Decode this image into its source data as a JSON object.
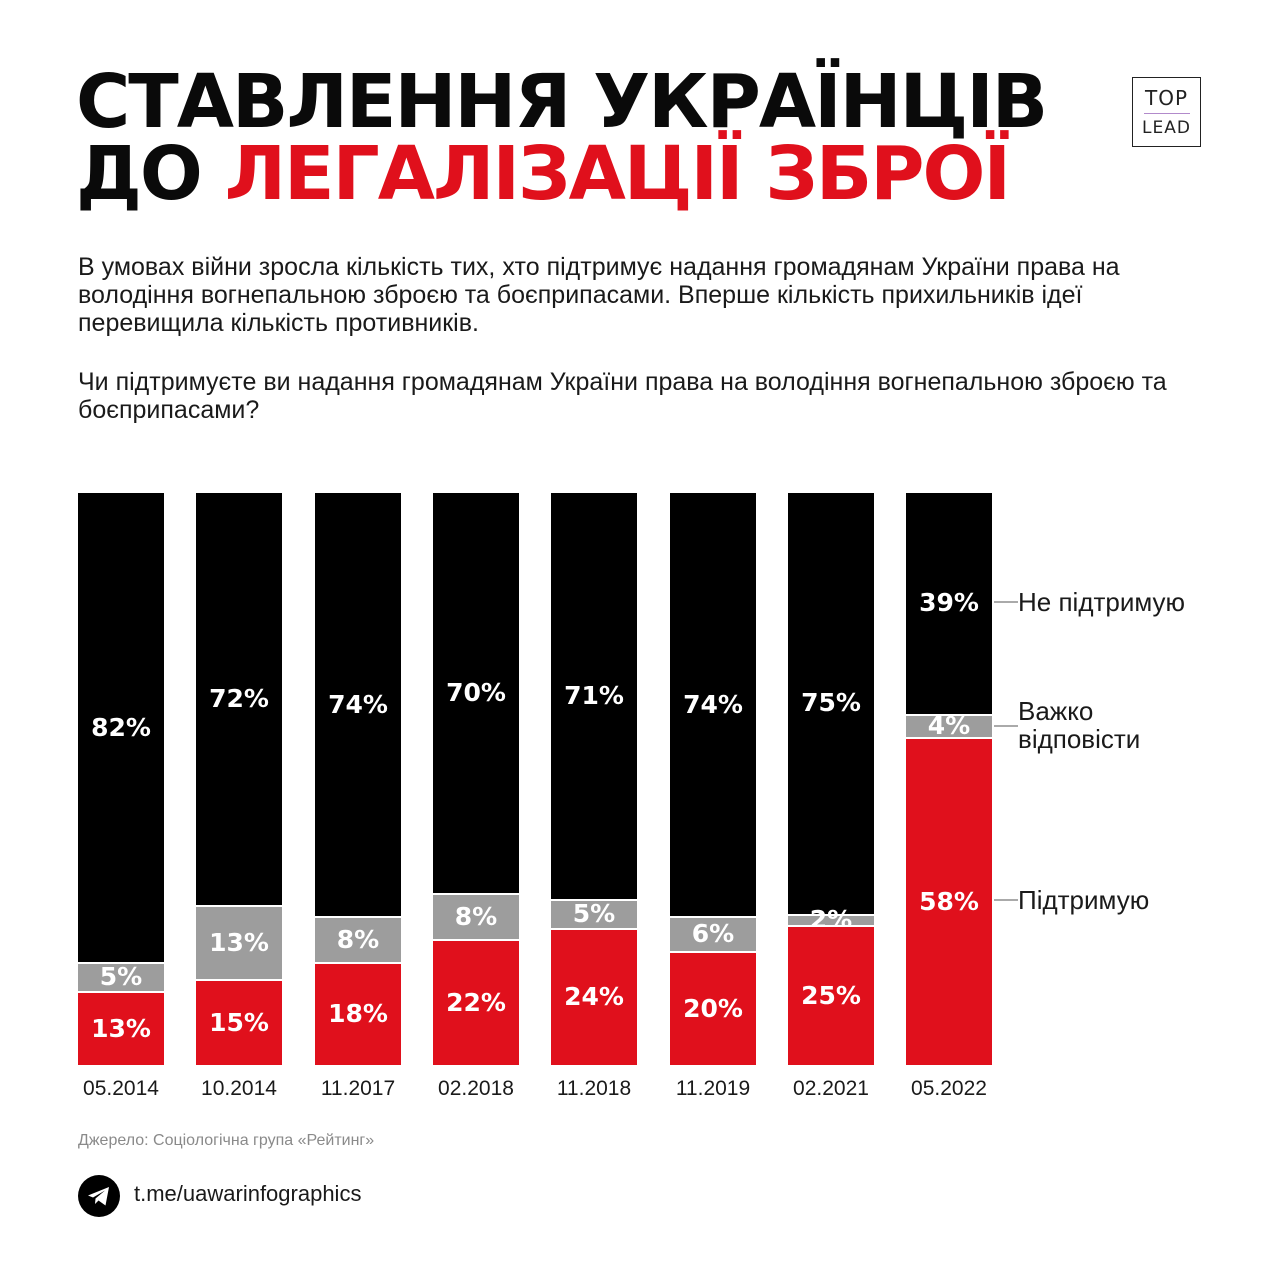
{
  "header": {
    "title_line1": "СТАВЛЕННЯ УКРАЇНЦІВ",
    "title_line2_black": "ДО ",
    "title_line2_red": "ЛЕГАЛІЗАЦІЇ ЗБРОЇ",
    "logo_top": "TOP",
    "logo_bottom": "LEAD"
  },
  "intro": "В умовах війни зросла кількість тих, хто підтримує надання громадянам України права на володіння вогнепальною зброєю та боєприпасами. Вперше кількість прихильників ідеї перевищила кількість противників.",
  "question": "Чи підтримуєте ви надання громадянам України права на володіння вогнепальною зброєю та боєприпасами?",
  "chart_data": {
    "type": "bar",
    "stacked": true,
    "categories": [
      "05.2014",
      "10.2014",
      "11.2017",
      "02.2018",
      "11.2018",
      "11.2019",
      "02.2021",
      "05.2022"
    ],
    "series": [
      {
        "name": "Не підтримую",
        "color": "#000000",
        "values": [
          82,
          72,
          74,
          70,
          71,
          74,
          75,
          39
        ]
      },
      {
        "name": "Важко відповісти",
        "color": "#9d9d9d",
        "values": [
          5,
          13,
          8,
          8,
          5,
          6,
          2,
          4
        ]
      },
      {
        "name": "Підтримую",
        "color": "#e0101c",
        "values": [
          13,
          15,
          18,
          22,
          24,
          20,
          25,
          58
        ]
      }
    ],
    "value_suffix": "%",
    "legend_position": "right"
  },
  "legend": {
    "not_support": "Не підтримую",
    "hard_line1": "Важко",
    "hard_line2": "відповісти",
    "support": "Підтримую"
  },
  "footer": {
    "source": "Джерело: Соціологічна група «Рейтинг»",
    "link": "t.me/uawarinfographics"
  },
  "colors": {
    "accent": "#e0101c",
    "neutral": "#9d9d9d",
    "dark": "#000000"
  }
}
